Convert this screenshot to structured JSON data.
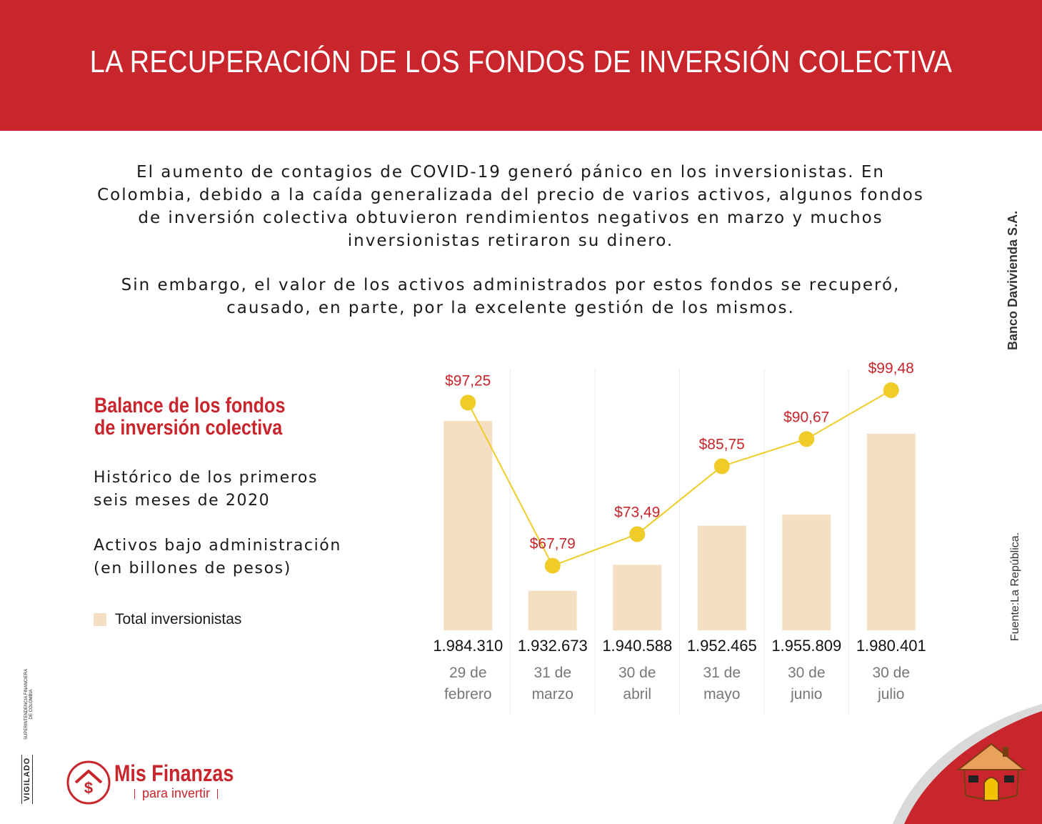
{
  "header": {
    "title": "LA RECUPERACIÓN DE LOS FONDOS DE INVERSIÓN COLECTIVA"
  },
  "intro": {
    "p1_lines": [
      "El aumento de contagios de COVID-19 generó pánico en los inversionistas. En",
      "Colombia, debido a la caída generalizada del precio de varios activos, algunos fondos",
      "de inversión colectiva obtuvieron rendimientos negativos en marzo y muchos",
      "inversionistas retiraron su dinero."
    ],
    "p2_lines": [
      "Sin embargo, el valor de los activos administrados por estos fondos se recuperó,",
      "causado, en parte, por la excelente gestión de los mismos."
    ]
  },
  "side": {
    "bank": "Banco Davivienda S.A.",
    "source": "Fuente:La República."
  },
  "panel": {
    "title_lines": [
      "Balance de los fondos",
      "de inversión colectiva"
    ],
    "subtitle1_lines": [
      "Histórico de los primeros",
      "seis meses de 2020"
    ],
    "subtitle2_lines": [
      "Activos bajo administración",
      "(en billones de pesos)"
    ],
    "legend_label": "Total inversionistas"
  },
  "chart_data": {
    "type": "bar",
    "categories": [
      [
        "29 de",
        "febrero"
      ],
      [
        "31 de",
        "marzo"
      ],
      [
        "30 de",
        "abril"
      ],
      [
        "31 de",
        "mayo"
      ],
      [
        "30 de",
        "junio"
      ],
      [
        "30 de",
        "julio"
      ]
    ],
    "series": [
      {
        "name": "Total inversionistas",
        "type": "bar",
        "values": [
          1984310,
          1932673,
          1940588,
          1952465,
          1955809,
          1980401
        ],
        "labels": [
          "1.984.310",
          "1.932.673",
          "1.940.588",
          "1.952.465",
          "1.955.809",
          "1.980.401"
        ],
        "color": "#f5dfc2"
      },
      {
        "type": "line",
        "values": [
          97.25,
          67.79,
          73.49,
          85.75,
          90.67,
          99.48
        ],
        "labels": [
          "$97,25",
          "$67,79",
          "$73,49",
          "$85,75",
          "$90,67",
          "$99,48"
        ],
        "color": "#f0cc28",
        "label_color": "#c8262c"
      }
    ],
    "grid": false
  },
  "footer": {
    "vigilado": "VIGILADO",
    "superfin_lines": [
      "SUPERINTENDENCIA FINANCIERA",
      "DE COLOMBIA"
    ],
    "logo_name": "Mis Finanzas",
    "logo_tagline": "para invertir",
    "logo_symbol": "$"
  },
  "colors": {
    "brand_red": "#c8262c",
    "bar": "#f5dfc2",
    "line": "#f0cc28",
    "date_gray": "#777777"
  }
}
